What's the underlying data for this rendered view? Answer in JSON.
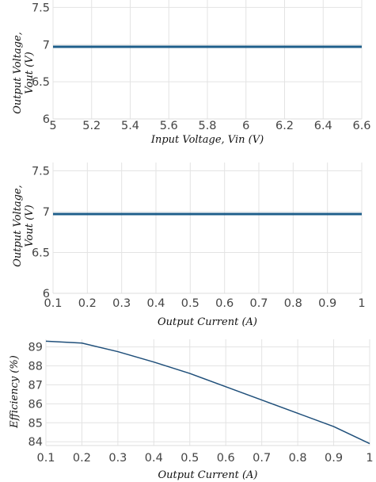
{
  "chart_data": [
    {
      "type": "line",
      "title": "",
      "xlabel": "Input Voltage, Vin (V)",
      "ylabel_lines": [
        "Output Voltage,",
        "Vout (V)"
      ],
      "xlim": [
        5,
        6.6
      ],
      "ylim": [
        6,
        7.6
      ],
      "x_ticks": [
        "5",
        "5.2",
        "5.4",
        "5.6",
        "5.8",
        "6",
        "6.2",
        "6.4",
        "6.6"
      ],
      "y_ticks": [
        "6",
        "6.5",
        "7",
        "7.5"
      ],
      "series": [
        {
          "x": [
            5,
            6.6
          ],
          "y": [
            6.97,
            6.97
          ]
        }
      ],
      "line_color": "#1f5f8b",
      "grid": true
    },
    {
      "type": "line",
      "title": "",
      "xlabel": "Output Current (A)",
      "ylabel_lines": [
        "Output Voltage,",
        "Vout (V)"
      ],
      "xlim": [
        0.1,
        1
      ],
      "ylim": [
        6,
        7.6
      ],
      "x_ticks": [
        "0.1",
        "0.2",
        "0.3",
        "0.4",
        "0.5",
        "0.6",
        "0.7",
        "0.8",
        "0.9",
        "1"
      ],
      "y_ticks": [
        "6",
        "6.5",
        "7",
        "7.5"
      ],
      "series": [
        {
          "x": [
            0.1,
            1
          ],
          "y": [
            6.97,
            6.97
          ]
        }
      ],
      "line_color": "#1f5f8b",
      "grid": true
    },
    {
      "type": "line",
      "title": "",
      "xlabel": "Output Current (A)",
      "ylabel_lines": [
        "Efficiency (%)"
      ],
      "xlim": [
        0.1,
        1
      ],
      "ylim": [
        83.8,
        89.4
      ],
      "x_ticks": [
        "0.1",
        "0.2",
        "0.3",
        "0.4",
        "0.5",
        "0.6",
        "0.7",
        "0.8",
        "0.9",
        "1"
      ],
      "y_ticks": [
        "84",
        "85",
        "86",
        "87",
        "88",
        "89"
      ],
      "series": [
        {
          "x": [
            0.1,
            0.2,
            0.3,
            0.4,
            0.5,
            0.6,
            0.7,
            0.8,
            0.9,
            1.0
          ],
          "y": [
            89.3,
            89.2,
            88.75,
            88.2,
            87.6,
            86.9,
            86.2,
            85.5,
            84.8,
            83.9
          ]
        }
      ],
      "line_color": "#1f4f7a",
      "grid": true
    }
  ]
}
